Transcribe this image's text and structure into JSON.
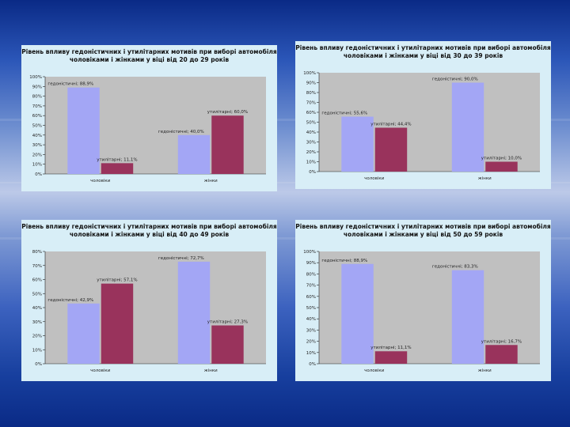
{
  "colors": {
    "series1": "#a3a6f5",
    "series2": "#99335c",
    "plot_bg": "#c0c0c0",
    "panel_bg": "#d8eef7"
  },
  "chart_data": [
    {
      "type": "bar",
      "title": "Рівень впливу гедоністичних і утилітарних мотивів при виборі автомобіля чоловіками і жінками у віці від 20 до 29 років",
      "categories": [
        "чоловіки",
        "жінки"
      ],
      "ylim": [
        0,
        100
      ],
      "yticks": [
        "0%",
        "10%",
        "20%",
        "30%",
        "40%",
        "50%",
        "60%",
        "70%",
        "80%",
        "90%",
        "100%"
      ],
      "bars": [
        {
          "category": 0,
          "series": 0,
          "value": 88.9,
          "label": "гедоністичні; 88,9%"
        },
        {
          "category": 0,
          "series": 1,
          "value": 11.1,
          "label": "утилітарні; 11,1%"
        },
        {
          "category": 1,
          "series": 0,
          "value": 40,
          "label": "гедоністичні; 40,0%"
        },
        {
          "category": 1,
          "series": 1,
          "value": 60,
          "label": "утилітарні; 60,0%"
        }
      ]
    },
    {
      "type": "bar",
      "title": "Рівень впливу гедоністичних і утилітарних мотивів при виборі автомобіля чоловіками і жінками у віці від 30 до 39 років",
      "categories": [
        "чоловіки",
        "жінки"
      ],
      "ylim": [
        0,
        100
      ],
      "yticks": [
        "0%",
        "10%",
        "20%",
        "30%",
        "40%",
        "50%",
        "60%",
        "70%",
        "80%",
        "90%",
        "100%"
      ],
      "bars": [
        {
          "category": 0,
          "series": 0,
          "value": 55.6,
          "label": "гедоністичні; 55,6%"
        },
        {
          "category": 0,
          "series": 1,
          "value": 44.4,
          "label": "утилітарні; 44,4%"
        },
        {
          "category": 1,
          "series": 0,
          "value": 90,
          "label": "гедоністичні; 90,0%"
        },
        {
          "category": 1,
          "series": 1,
          "value": 10,
          "label": "утилітарні; 10,0%"
        }
      ]
    },
    {
      "type": "bar",
      "title": "Рівень впливу гедоністичних і утилітарних мотивів при виборі автомобіля чоловіками і жінками у віці від 40 до 49 років",
      "categories": [
        "чоловіки",
        "жінки"
      ],
      "ylim": [
        0,
        80
      ],
      "yticks": [
        "0%",
        "10%",
        "20%",
        "30%",
        "40%",
        "50%",
        "60%",
        "70%",
        "80%"
      ],
      "bars": [
        {
          "category": 0,
          "series": 0,
          "value": 42.9,
          "label": "гедоністичні; 42,9%"
        },
        {
          "category": 0,
          "series": 1,
          "value": 57.1,
          "label": "утилітарні; 57,1%"
        },
        {
          "category": 1,
          "series": 0,
          "value": 72.7,
          "label": "гедоністичні; 72,7%"
        },
        {
          "category": 1,
          "series": 1,
          "value": 27.3,
          "label": "утилітарні; 27,3%"
        }
      ]
    },
    {
      "type": "bar",
      "title": "Рівень впливу гедоністичних і утилітарних мотивів при виборі автомобіля чоловіками і жінками у віці від 50 до 59 років",
      "categories": [
        "чоловіки",
        "жінки"
      ],
      "ylim": [
        0,
        100
      ],
      "yticks": [
        "0%",
        "10%",
        "20%",
        "30%",
        "40%",
        "50%",
        "60%",
        "70%",
        "80%",
        "90%",
        "100%"
      ],
      "bars": [
        {
          "category": 0,
          "series": 0,
          "value": 88.9,
          "label": "гедоністичні; 88,9%"
        },
        {
          "category": 0,
          "series": 1,
          "value": 11.1,
          "label": "утилітарні; 11,1%"
        },
        {
          "category": 1,
          "series": 0,
          "value": 83.3,
          "label": "гедоністичні; 83,3%"
        },
        {
          "category": 1,
          "series": 1,
          "value": 16.7,
          "label": "утилітарні; 16,7%"
        }
      ]
    }
  ]
}
